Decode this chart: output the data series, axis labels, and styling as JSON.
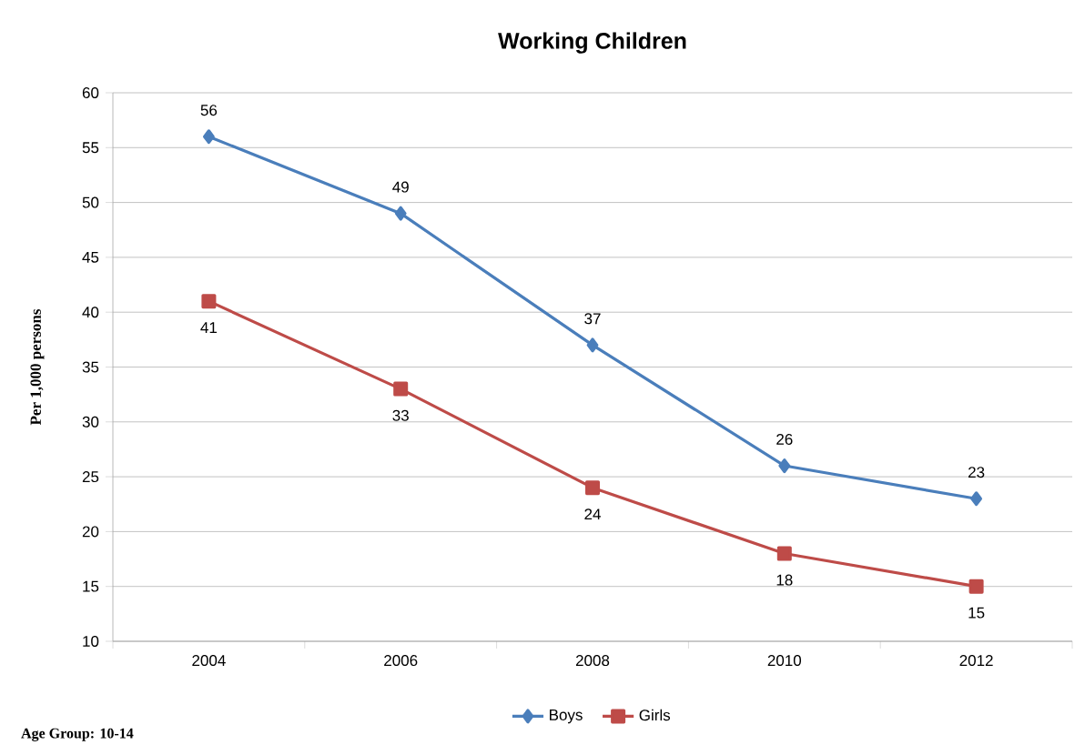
{
  "chart_data": {
    "type": "line",
    "title": "Working Children",
    "ylabel": "Per 1,000 persons",
    "categories": [
      "2004",
      "2006",
      "2008",
      "2010",
      "2012"
    ],
    "series": [
      {
        "name": "Boys",
        "color": "#4a7ebb",
        "marker": "diamond",
        "values": [
          56,
          49,
          37,
          26,
          23
        ]
      },
      {
        "name": "Girls",
        "color": "#be4b48",
        "marker": "square",
        "values": [
          41,
          33,
          24,
          18,
          15
        ]
      }
    ],
    "ylim": [
      10,
      60
    ],
    "yticks": [
      10,
      15,
      20,
      25,
      30,
      35,
      40,
      45,
      50,
      55,
      60
    ],
    "grid": "y",
    "legend": "bottom",
    "data_labels": true,
    "annotations": [
      "Age Group: 10-14"
    ]
  }
}
